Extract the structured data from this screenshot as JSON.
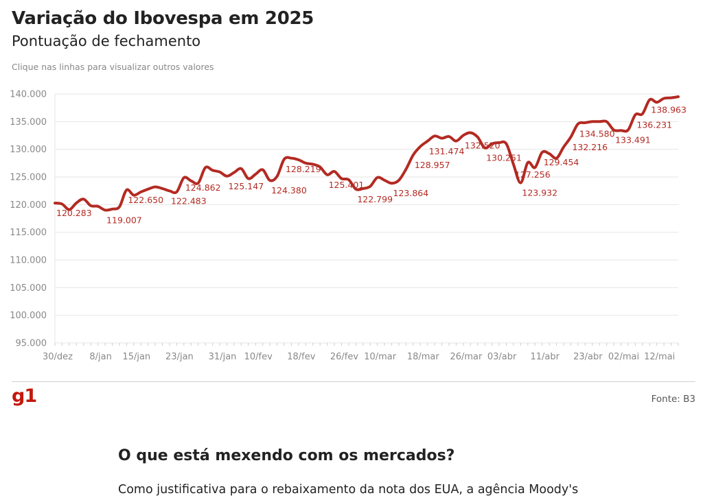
{
  "header": {
    "title": "Variação do Ibovespa em 2025",
    "subtitle": "Pontuação de fechamento",
    "hint": "Clique nas linhas para visualizar outros valores"
  },
  "footer": {
    "logo": "g1",
    "source": "Fonte: B3"
  },
  "article": {
    "heading": "O que está mexendo com os mercados?",
    "text": "Como justificativa para o rebaixamento da nota dos EUA, a agência Moody's"
  },
  "colors": {
    "series": "#b32a22",
    "brand": "#c4170c"
  },
  "chart_data": {
    "type": "line",
    "title": "Variação do Ibovespa em 2025",
    "subtitle": "Pontuação de fechamento",
    "xlabel": "",
    "ylabel": "",
    "ylim": [
      95000,
      140000
    ],
    "y_ticks": [
      95000,
      100000,
      105000,
      110000,
      115000,
      120000,
      125000,
      130000,
      135000,
      140000
    ],
    "y_tick_labels": [
      "95.000",
      "100.000",
      "105.000",
      "110.000",
      "115.000",
      "120.000",
      "125.000",
      "130.000",
      "135.000",
      "140.000"
    ],
    "x_ticks": [
      {
        "i": 0,
        "label": "30/dez"
      },
      {
        "i": 6,
        "label": "8/jan"
      },
      {
        "i": 11,
        "label": "15/jan"
      },
      {
        "i": 17,
        "label": "23/jan"
      },
      {
        "i": 23,
        "label": "31/jan"
      },
      {
        "i": 28,
        "label": "10/fev"
      },
      {
        "i": 34,
        "label": "18/fev"
      },
      {
        "i": 40,
        "label": "26/fev"
      },
      {
        "i": 45,
        "label": "10/mar"
      },
      {
        "i": 51,
        "label": "18/mar"
      },
      {
        "i": 57,
        "label": "26/mar"
      },
      {
        "i": 62,
        "label": "03/abr"
      },
      {
        "i": 68,
        "label": "11/abr"
      },
      {
        "i": 74,
        "label": "23/abr"
      },
      {
        "i": 79,
        "label": "02/mai"
      },
      {
        "i": 84,
        "label": "12/mai"
      }
    ],
    "series": [
      {
        "name": "Ibovespa",
        "values": [
          120283,
          120100,
          119100,
          120300,
          121000,
          119800,
          119700,
          119007,
          119200,
          119600,
          122650,
          121700,
          122300,
          122800,
          123200,
          122900,
          122483,
          122300,
          124862,
          124300,
          123900,
          126700,
          126200,
          125900,
          125147,
          125800,
          126500,
          124700,
          125500,
          126300,
          124380,
          125100,
          128219,
          128400,
          128100,
          127500,
          127300,
          126800,
          125401,
          126000,
          124700,
          124500,
          122799,
          122900,
          123300,
          124900,
          124400,
          123864,
          124400,
          126400,
          128957,
          130500,
          131474,
          132400,
          132000,
          132300,
          131500,
          132520,
          133000,
          132200,
          130251,
          131000,
          131200,
          131000,
          127256,
          123932,
          127600,
          126700,
          129454,
          129200,
          128400,
          130400,
          132216,
          134580,
          134800,
          135000,
          135000,
          135000,
          133491,
          133400,
          133491,
          136231,
          136400,
          138963,
          138500,
          139200,
          139300,
          139500
        ]
      }
    ],
    "data_labels": [
      {
        "i": 0,
        "text": "120.283",
        "pos": "below"
      },
      {
        "i": 7,
        "text": "119.007",
        "pos": "below"
      },
      {
        "i": 10,
        "text": "122.650",
        "pos": "below"
      },
      {
        "i": 16,
        "text": "122.483",
        "pos": "below"
      },
      {
        "i": 18,
        "text": "124.862",
        "pos": "below"
      },
      {
        "i": 24,
        "text": "125.147",
        "pos": "below"
      },
      {
        "i": 30,
        "text": "124.380",
        "pos": "below"
      },
      {
        "i": 32,
        "text": "128.219",
        "pos": "below"
      },
      {
        "i": 38,
        "text": "125.401",
        "pos": "below"
      },
      {
        "i": 42,
        "text": "122.799",
        "pos": "below"
      },
      {
        "i": 47,
        "text": "123.864",
        "pos": "below"
      },
      {
        "i": 50,
        "text": "128.957",
        "pos": "below"
      },
      {
        "i": 52,
        "text": "131.474",
        "pos": "below"
      },
      {
        "i": 57,
        "text": "132.520",
        "pos": "below"
      },
      {
        "i": 60,
        "text": "130.251",
        "pos": "below"
      },
      {
        "i": 64,
        "text": "127.256",
        "pos": "below"
      },
      {
        "i": 65,
        "text": "123.932",
        "pos": "below"
      },
      {
        "i": 68,
        "text": "129.454",
        "pos": "below"
      },
      {
        "i": 72,
        "text": "132.216",
        "pos": "below"
      },
      {
        "i": 73,
        "text": "134.580",
        "pos": "below"
      },
      {
        "i": 78,
        "text": "133.491",
        "pos": "below"
      },
      {
        "i": 81,
        "text": "136.231",
        "pos": "below"
      },
      {
        "i": 83,
        "text": "138.963",
        "pos": "below"
      }
    ]
  }
}
